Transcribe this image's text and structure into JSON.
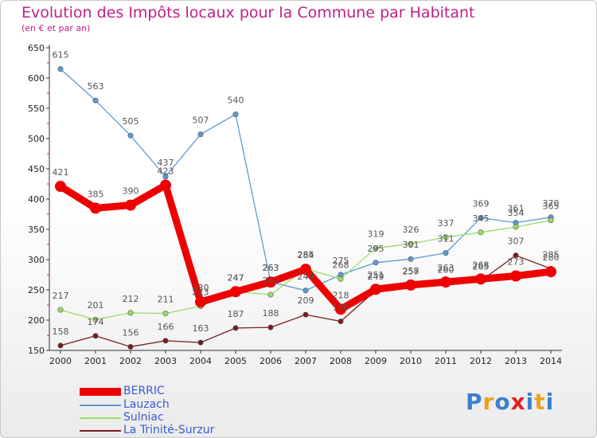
{
  "header": {
    "title": "Evolution des Impôts locaux pour la Commune par Habitant",
    "subtitle": "(en € et par an)"
  },
  "chart_data": {
    "type": "line",
    "title": "Evolution des Impôts locaux pour la Commune par Habitant",
    "subtitle": "(en € et par an)",
    "xlabel": "",
    "ylabel": "",
    "x": [
      "2000",
      "2001",
      "2002",
      "2003",
      "2004",
      "2005",
      "2006",
      "2007",
      "2008",
      "2009",
      "2010",
      "2011",
      "2012",
      "2013",
      "2014"
    ],
    "ylim": [
      150,
      650
    ],
    "yticks": [
      150,
      200,
      250,
      300,
      350,
      400,
      450,
      500,
      550,
      600,
      650
    ],
    "grid": false,
    "legend_position": "bottom-left",
    "series": [
      {
        "name": "BERRIC",
        "color": "#ee0000",
        "values": [
          421,
          385,
          390,
          423,
          230,
          247,
          263,
          284,
          218,
          251,
          258,
          263,
          268,
          273,
          280
        ]
      },
      {
        "name": "Lauzach",
        "color": "#5b9bd5",
        "values": [
          615,
          563,
          505,
          437,
          507,
          540,
          263,
          249,
          275,
          295,
          301,
          311,
          369,
          361,
          370
        ]
      },
      {
        "name": "Sulniac",
        "color": "#99dd66",
        "values": [
          217,
          201,
          212,
          211,
          223,
          247,
          242,
          285,
          268,
          319,
          326,
          337,
          345,
          354,
          365
        ]
      },
      {
        "name": "La Trinité-Surzur",
        "color": "#7a1c1c",
        "values": [
          158,
          174,
          156,
          166,
          163,
          187,
          188,
          209,
          198,
          249,
          257,
          260,
          265,
          307,
          285
        ]
      }
    ]
  },
  "legend": {
    "items": [
      "BERRIC",
      "Lauzach",
      "Sulniac",
      "La Trinité-Surzur"
    ]
  },
  "logo": {
    "text": "Proxiti",
    "colors": [
      "#3a7fd0",
      "#f0a020",
      "#3a7fd0",
      "#e02020",
      "#3a7fd0",
      "#f0a020",
      "#3a7fd0"
    ]
  }
}
